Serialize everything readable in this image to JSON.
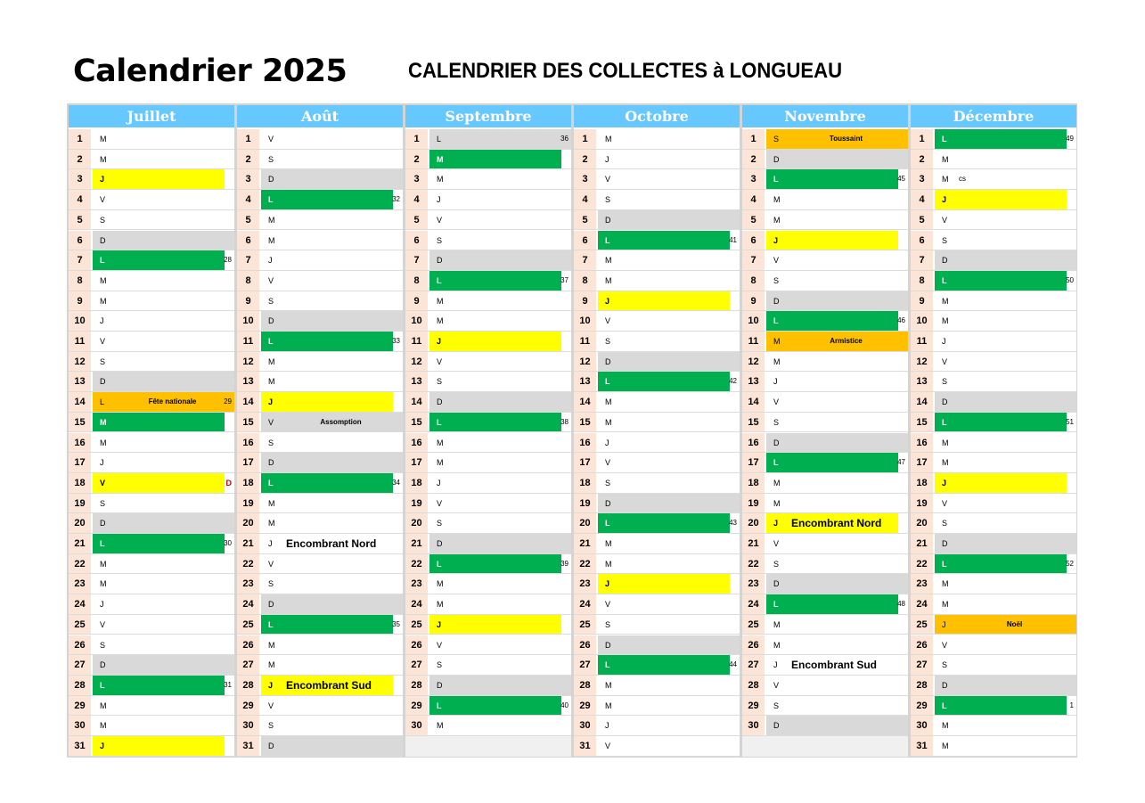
{
  "header": {
    "title_left": "Calendrier 2025",
    "title_right": "CALENDRIER DES COLLECTES à LONGUEAU"
  },
  "colors": {
    "header": "#66c8ff",
    "green": "#00b050",
    "yellow": "#ffff00",
    "gray": "#d9d9d9",
    "orange": "#ffc000",
    "daynum": "#fce4d6"
  },
  "months": [
    {
      "name": "Juillet",
      "days": [
        {
          "n": "1",
          "l": "M"
        },
        {
          "n": "2",
          "l": "M"
        },
        {
          "n": "3",
          "l": "J",
          "c": "yellow"
        },
        {
          "n": "4",
          "l": "V"
        },
        {
          "n": "5",
          "l": "S"
        },
        {
          "n": "6",
          "l": "D",
          "c": "gray"
        },
        {
          "n": "7",
          "l": "L",
          "c": "green",
          "w": "28"
        },
        {
          "n": "8",
          "l": "M"
        },
        {
          "n": "9",
          "l": "M"
        },
        {
          "n": "10",
          "l": "J"
        },
        {
          "n": "11",
          "l": "V"
        },
        {
          "n": "12",
          "l": "S"
        },
        {
          "n": "13",
          "l": "D",
          "c": "gray"
        },
        {
          "n": "14",
          "l": "L",
          "c": "orange",
          "note": "Fête nationale",
          "w": "29"
        },
        {
          "n": "15",
          "l": "M",
          "c": "green"
        },
        {
          "n": "16",
          "l": "M"
        },
        {
          "n": "17",
          "l": "J"
        },
        {
          "n": "18",
          "l": "V",
          "c": "yellow",
          "w": "D",
          "wred": true
        },
        {
          "n": "19",
          "l": "S"
        },
        {
          "n": "20",
          "l": "D",
          "c": "gray"
        },
        {
          "n": "21",
          "l": "L",
          "c": "green",
          "w": "30"
        },
        {
          "n": "22",
          "l": "M"
        },
        {
          "n": "23",
          "l": "M"
        },
        {
          "n": "24",
          "l": "J"
        },
        {
          "n": "25",
          "l": "V"
        },
        {
          "n": "26",
          "l": "S"
        },
        {
          "n": "27",
          "l": "D",
          "c": "gray"
        },
        {
          "n": "28",
          "l": "L",
          "c": "green",
          "w": "31"
        },
        {
          "n": "29",
          "l": "M"
        },
        {
          "n": "30",
          "l": "M"
        },
        {
          "n": "31",
          "l": "J",
          "c": "yellow"
        }
      ]
    },
    {
      "name": "Août",
      "days": [
        {
          "n": "1",
          "l": "V"
        },
        {
          "n": "2",
          "l": "S"
        },
        {
          "n": "3",
          "l": "D",
          "c": "gray"
        },
        {
          "n": "4",
          "l": "L",
          "c": "green",
          "w": "32"
        },
        {
          "n": "5",
          "l": "M"
        },
        {
          "n": "6",
          "l": "M"
        },
        {
          "n": "7",
          "l": "J"
        },
        {
          "n": "8",
          "l": "V"
        },
        {
          "n": "9",
          "l": "S"
        },
        {
          "n": "10",
          "l": "D",
          "c": "gray"
        },
        {
          "n": "11",
          "l": "L",
          "c": "green",
          "w": "33"
        },
        {
          "n": "12",
          "l": "M"
        },
        {
          "n": "13",
          "l": "M"
        },
        {
          "n": "14",
          "l": "J",
          "c": "yellow"
        },
        {
          "n": "15",
          "l": "V",
          "c": "gray",
          "note": "Assomption"
        },
        {
          "n": "16",
          "l": "S"
        },
        {
          "n": "17",
          "l": "D",
          "c": "gray"
        },
        {
          "n": "18",
          "l": "L",
          "c": "green",
          "w": "34"
        },
        {
          "n": "19",
          "l": "M"
        },
        {
          "n": "20",
          "l": "M"
        },
        {
          "n": "21",
          "l": "J",
          "big": "Encombrant Nord"
        },
        {
          "n": "22",
          "l": "V"
        },
        {
          "n": "23",
          "l": "S"
        },
        {
          "n": "24",
          "l": "D",
          "c": "gray"
        },
        {
          "n": "25",
          "l": "L",
          "c": "green",
          "w": "35"
        },
        {
          "n": "26",
          "l": "M"
        },
        {
          "n": "27",
          "l": "M"
        },
        {
          "n": "28",
          "l": "J",
          "c": "yellow",
          "big": "Encombrant Sud"
        },
        {
          "n": "29",
          "l": "V"
        },
        {
          "n": "30",
          "l": "S"
        },
        {
          "n": "31",
          "l": "D",
          "c": "gray"
        }
      ]
    },
    {
      "name": "Septembre",
      "days": [
        {
          "n": "1",
          "l": "L",
          "c": "gray",
          "w": "36"
        },
        {
          "n": "2",
          "l": "M",
          "c": "green"
        },
        {
          "n": "3",
          "l": "M"
        },
        {
          "n": "4",
          "l": "J"
        },
        {
          "n": "5",
          "l": "V"
        },
        {
          "n": "6",
          "l": "S"
        },
        {
          "n": "7",
          "l": "D",
          "c": "gray"
        },
        {
          "n": "8",
          "l": "L",
          "c": "green",
          "w": "37"
        },
        {
          "n": "9",
          "l": "M"
        },
        {
          "n": "10",
          "l": "M"
        },
        {
          "n": "11",
          "l": "J",
          "c": "yellow"
        },
        {
          "n": "12",
          "l": "V"
        },
        {
          "n": "13",
          "l": "S"
        },
        {
          "n": "14",
          "l": "D",
          "c": "gray"
        },
        {
          "n": "15",
          "l": "L",
          "c": "green",
          "w": "38"
        },
        {
          "n": "16",
          "l": "M"
        },
        {
          "n": "17",
          "l": "M"
        },
        {
          "n": "18",
          "l": "J"
        },
        {
          "n": "19",
          "l": "V"
        },
        {
          "n": "20",
          "l": "S"
        },
        {
          "n": "21",
          "l": "D",
          "c": "gray"
        },
        {
          "n": "22",
          "l": "L",
          "c": "green",
          "w": "39"
        },
        {
          "n": "23",
          "l": "M"
        },
        {
          "n": "24",
          "l": "M"
        },
        {
          "n": "25",
          "l": "J",
          "c": "yellow"
        },
        {
          "n": "26",
          "l": "V"
        },
        {
          "n": "27",
          "l": "S"
        },
        {
          "n": "28",
          "l": "D",
          "c": "gray"
        },
        {
          "n": "29",
          "l": "L",
          "c": "green",
          "w": "40"
        },
        {
          "n": "30",
          "l": "M"
        }
      ]
    },
    {
      "name": "Octobre",
      "days": [
        {
          "n": "1",
          "l": "M"
        },
        {
          "n": "2",
          "l": "J"
        },
        {
          "n": "3",
          "l": "V"
        },
        {
          "n": "4",
          "l": "S"
        },
        {
          "n": "5",
          "l": "D",
          "c": "gray"
        },
        {
          "n": "6",
          "l": "L",
          "c": "green",
          "w": "41"
        },
        {
          "n": "7",
          "l": "M"
        },
        {
          "n": "8",
          "l": "M"
        },
        {
          "n": "9",
          "l": "J",
          "c": "yellow"
        },
        {
          "n": "10",
          "l": "V"
        },
        {
          "n": "11",
          "l": "S"
        },
        {
          "n": "12",
          "l": "D",
          "c": "gray"
        },
        {
          "n": "13",
          "l": "L",
          "c": "green",
          "w": "42"
        },
        {
          "n": "14",
          "l": "M"
        },
        {
          "n": "15",
          "l": "M"
        },
        {
          "n": "16",
          "l": "J"
        },
        {
          "n": "17",
          "l": "V"
        },
        {
          "n": "18",
          "l": "S"
        },
        {
          "n": "19",
          "l": "D",
          "c": "gray"
        },
        {
          "n": "20",
          "l": "L",
          "c": "green",
          "w": "43"
        },
        {
          "n": "21",
          "l": "M"
        },
        {
          "n": "22",
          "l": "M"
        },
        {
          "n": "23",
          "l": "J",
          "c": "yellow"
        },
        {
          "n": "24",
          "l": "V"
        },
        {
          "n": "25",
          "l": "S"
        },
        {
          "n": "26",
          "l": "D",
          "c": "gray"
        },
        {
          "n": "27",
          "l": "L",
          "c": "green",
          "w": "44"
        },
        {
          "n": "28",
          "l": "M"
        },
        {
          "n": "29",
          "l": "M"
        },
        {
          "n": "30",
          "l": "J"
        },
        {
          "n": "31",
          "l": "V"
        }
      ]
    },
    {
      "name": "Novembre",
      "days": [
        {
          "n": "1",
          "l": "S",
          "c": "orange",
          "note": "Toussaint"
        },
        {
          "n": "2",
          "l": "D",
          "c": "gray"
        },
        {
          "n": "3",
          "l": "L",
          "c": "green",
          "w": "45"
        },
        {
          "n": "4",
          "l": "M"
        },
        {
          "n": "5",
          "l": "M"
        },
        {
          "n": "6",
          "l": "J",
          "c": "yellow"
        },
        {
          "n": "7",
          "l": "V"
        },
        {
          "n": "8",
          "l": "S"
        },
        {
          "n": "9",
          "l": "D",
          "c": "gray"
        },
        {
          "n": "10",
          "l": "L",
          "c": "green",
          "w": "46"
        },
        {
          "n": "11",
          "l": "M",
          "c": "orange",
          "note": "Armistice"
        },
        {
          "n": "12",
          "l": "M"
        },
        {
          "n": "13",
          "l": "J"
        },
        {
          "n": "14",
          "l": "V"
        },
        {
          "n": "15",
          "l": "S"
        },
        {
          "n": "16",
          "l": "D",
          "c": "gray"
        },
        {
          "n": "17",
          "l": "L",
          "c": "green",
          "w": "47"
        },
        {
          "n": "18",
          "l": "M"
        },
        {
          "n": "19",
          "l": "M"
        },
        {
          "n": "20",
          "l": "J",
          "c": "yellow",
          "big": "Encombrant Nord"
        },
        {
          "n": "21",
          "l": "V"
        },
        {
          "n": "22",
          "l": "S"
        },
        {
          "n": "23",
          "l": "D",
          "c": "gray"
        },
        {
          "n": "24",
          "l": "L",
          "c": "green",
          "w": "48"
        },
        {
          "n": "25",
          "l": "M"
        },
        {
          "n": "26",
          "l": "M"
        },
        {
          "n": "27",
          "l": "J",
          "big": "Encombrant Sud"
        },
        {
          "n": "28",
          "l": "V"
        },
        {
          "n": "29",
          "l": "S"
        },
        {
          "n": "30",
          "l": "D",
          "c": "gray"
        }
      ]
    },
    {
      "name": "Décembre",
      "days": [
        {
          "n": "1",
          "l": "L",
          "c": "green",
          "w": "49"
        },
        {
          "n": "2",
          "l": "M"
        },
        {
          "n": "3",
          "l": "M",
          "extra": "cs"
        },
        {
          "n": "4",
          "l": "J",
          "c": "yellow"
        },
        {
          "n": "5",
          "l": "V"
        },
        {
          "n": "6",
          "l": "S"
        },
        {
          "n": "7",
          "l": "D",
          "c": "gray"
        },
        {
          "n": "8",
          "l": "L",
          "c": "green",
          "w": "50"
        },
        {
          "n": "9",
          "l": "M"
        },
        {
          "n": "10",
          "l": "M"
        },
        {
          "n": "11",
          "l": "J"
        },
        {
          "n": "12",
          "l": "V"
        },
        {
          "n": "13",
          "l": "S"
        },
        {
          "n": "14",
          "l": "D",
          "c": "gray"
        },
        {
          "n": "15",
          "l": "L",
          "c": "green",
          "w": "51"
        },
        {
          "n": "16",
          "l": "M"
        },
        {
          "n": "17",
          "l": "M"
        },
        {
          "n": "18",
          "l": "J",
          "c": "yellow"
        },
        {
          "n": "19",
          "l": "V"
        },
        {
          "n": "20",
          "l": "S"
        },
        {
          "n": "21",
          "l": "D",
          "c": "gray"
        },
        {
          "n": "22",
          "l": "L",
          "c": "green",
          "w": "52"
        },
        {
          "n": "23",
          "l": "M"
        },
        {
          "n": "24",
          "l": "M"
        },
        {
          "n": "25",
          "l": "J",
          "c": "orange",
          "note": "Noël"
        },
        {
          "n": "26",
          "l": "V"
        },
        {
          "n": "27",
          "l": "S"
        },
        {
          "n": "28",
          "l": "D",
          "c": "gray"
        },
        {
          "n": "29",
          "l": "L",
          "c": "green",
          "w": "1"
        },
        {
          "n": "30",
          "l": "M"
        },
        {
          "n": "31",
          "l": "M"
        }
      ]
    }
  ]
}
